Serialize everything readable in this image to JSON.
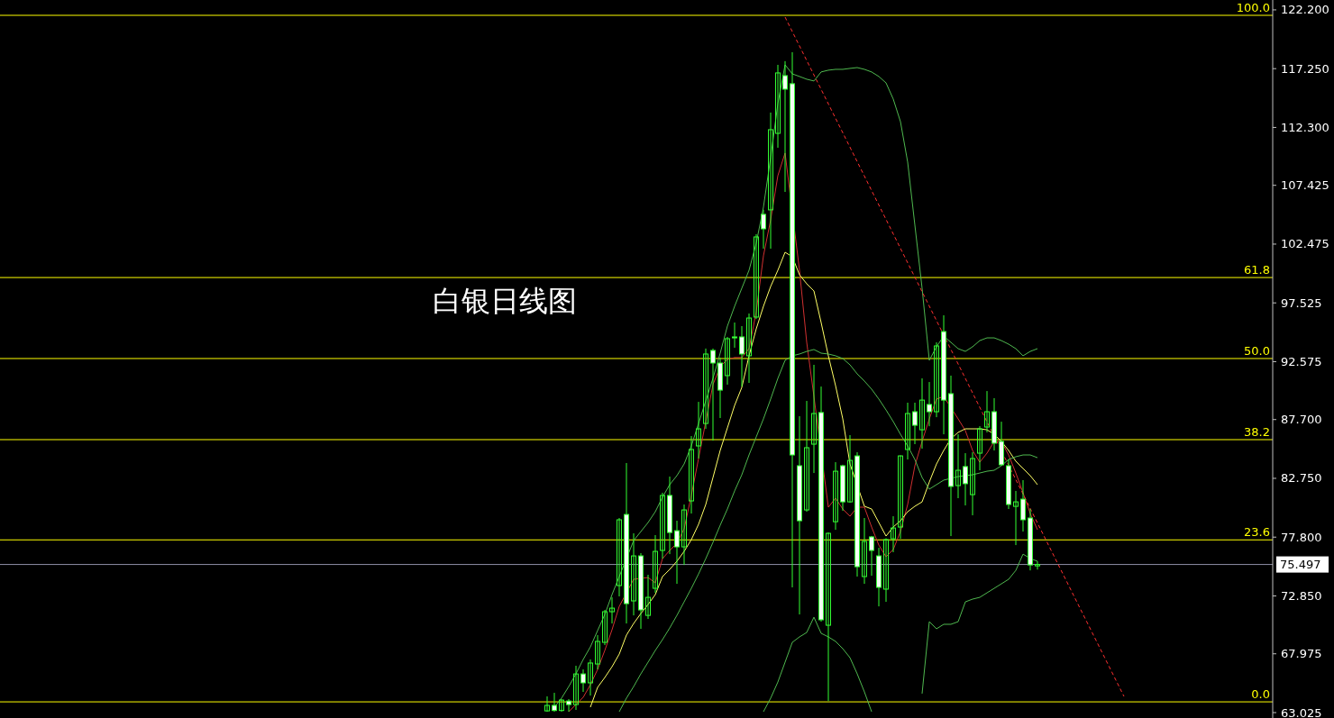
{
  "chart_data": {
    "type": "candlestick",
    "title": "白银日线图",
    "categories": [
      null,
      null,
      null,
      null,
      null,
      null,
      null,
      null,
      null,
      null,
      null,
      null,
      null,
      null,
      null,
      null,
      null,
      null,
      null,
      null,
      null,
      null,
      null,
      null,
      null,
      null,
      null,
      null,
      null,
      null,
      null,
      null,
      null,
      null,
      null,
      null,
      null,
      null,
      null,
      null,
      null,
      null,
      null,
      null,
      null,
      null,
      null,
      null,
      null,
      null,
      null,
      null,
      null,
      null,
      null,
      null,
      null,
      null,
      null,
      null,
      null,
      null,
      null,
      null,
      null,
      null,
      null,
      null,
      null,
      null,
      null,
      null,
      null,
      null,
      null,
      null,
      null,
      null,
      null,
      null,
      null,
      null,
      null,
      null,
      null,
      null,
      null,
      null,
      null,
      null,
      null,
      null,
      null,
      null,
      null,
      null,
      null,
      null,
      null,
      null,
      null
    ],
    "color": "#33ff33",
    "ohlc": [
      [
        63.17,
        64.39,
        63.1,
        63.63
      ],
      [
        63.63,
        64.69,
        63.1,
        63.2
      ],
      [
        63.2,
        64.16,
        63.1,
        64.08
      ],
      [
        64.0,
        64.16,
        63.1,
        63.7
      ],
      [
        63.7,
        66.97,
        63.25,
        66.28
      ],
      [
        66.28,
        66.66,
        64.77,
        65.53
      ],
      [
        65.53,
        67.5,
        64.46,
        67.2
      ],
      [
        67.12,
        69.55,
        66.66,
        69.02
      ],
      [
        68.94,
        71.67,
        68.71,
        71.52
      ],
      [
        71.52,
        72.73,
        70.53,
        71.82
      ],
      [
        73.72,
        79.41,
        72.81,
        79.26
      ],
      [
        79.71,
        84.04,
        70.53,
        72.2
      ],
      [
        72.43,
        78.12,
        71.21,
        76.22
      ],
      [
        76.22,
        76.45,
        70.08,
        71.67
      ],
      [
        71.21,
        74.63,
        70.91,
        72.73
      ],
      [
        73.49,
        77.97,
        73.11,
        76.6
      ],
      [
        76.68,
        81.54,
        75.99,
        81.31
      ],
      [
        81.31,
        82.9,
        76.37,
        78.19
      ],
      [
        78.34,
        79.18,
        73.87,
        76.98
      ],
      [
        76.98,
        80.55,
        75.46,
        80.09
      ],
      [
        80.85,
        86.31,
        79.79,
        85.18
      ],
      [
        85.48,
        89.19,
        84.42,
        86.92
      ],
      [
        87.37,
        93.68,
        86.92,
        93.22
      ],
      [
        93.52,
        93.68,
        85.93,
        92.46
      ],
      [
        92.46,
        92.92,
        87.83,
        90.18
      ],
      [
        91.4,
        94.66,
        90.64,
        94.51
      ],
      [
        94.66,
        95.87,
        93.75,
        94.58
      ],
      [
        94.66,
        95.57,
        90.48,
        93.22
      ],
      [
        93.07,
        96.63,
        90.79,
        96.25
      ],
      [
        96.33,
        103.31,
        96.17,
        103.08
      ],
      [
        104.98,
        105.36,
        102.09,
        103.76
      ],
      [
        105.36,
        113.55,
        102.09,
        112.11
      ],
      [
        111.8,
        117.57,
        110.59,
        116.89
      ],
      [
        116.66,
        117.88,
        106.87,
        115.52
      ],
      [
        115.98,
        118.63,
        73.57,
        84.72
      ],
      [
        83.81,
        87.98,
        71.29,
        79.18
      ],
      [
        80.09,
        89.27,
        79.94,
        85.33
      ],
      [
        85.63,
        92.31,
        83.2,
        88.21
      ],
      [
        88.29,
        90.48,
        70.68,
        70.84
      ],
      [
        70.38,
        78.2,
        64.0,
        78.12
      ],
      [
        79.1,
        84.11,
        78.42,
        83.35
      ],
      [
        83.81,
        83.9,
        80.02,
        80.77
      ],
      [
        80.77,
        86.39,
        80.7,
        84.26
      ],
      [
        84.64,
        84.95,
        74.48,
        75.31
      ],
      [
        74.48,
        79.41,
        73.87,
        77.44
      ],
      [
        77.82,
        77.9,
        74.55,
        76.68
      ],
      [
        76.22,
        76.9,
        71.97,
        73.57
      ],
      [
        73.42,
        77.7,
        72.35,
        77.59
      ],
      [
        77.66,
        79.56,
        76.53,
        78.57
      ],
      [
        78.65,
        84.7,
        77.66,
        84.64
      ],
      [
        85.18,
        89.12,
        84.34,
        88.21
      ],
      [
        88.36,
        89.12,
        85.63,
        87.22
      ],
      [
        86.84,
        91.17,
        85.25,
        89.34
      ],
      [
        88.97,
        90.86,
        87.14,
        88.36
      ],
      [
        88.36,
        94.2,
        87.9,
        93.9
      ],
      [
        95.11,
        96.48,
        86.46,
        89.34
      ],
      [
        89.88,
        91.4,
        77.89,
        82.07
      ],
      [
        82.14,
        86.46,
        81.08,
        83.43
      ],
      [
        83.74,
        84.87,
        80.47,
        82.3
      ],
      [
        81.38,
        84.95,
        79.64,
        84.42
      ],
      [
        84.87,
        87.14,
        83.43,
        86.92
      ],
      [
        87.07,
        90.1,
        86.62,
        88.36
      ],
      [
        88.36,
        89.5,
        85.1,
        85.71
      ],
      [
        85.86,
        87.52,
        83.81,
        83.89
      ],
      [
        83.81,
        84.34,
        80.17,
        80.55
      ],
      [
        80.39,
        81.69,
        77.13,
        80.77
      ],
      [
        81.0,
        82.6,
        78.27,
        79.26
      ],
      [
        79.41,
        80.17,
        75.0,
        75.46
      ],
      [
        75.38,
        75.76,
        75.07,
        75.5
      ],
      null,
      null,
      null,
      null,
      null,
      null,
      null,
      null,
      null,
      null,
      null,
      null,
      null,
      null,
      null,
      null,
      null,
      null,
      null,
      null,
      null,
      null,
      null,
      null,
      null,
      null,
      null,
      null,
      null,
      null,
      null,
      null
    ],
    "series": [
      {
        "type": "line",
        "color": "#d03030",
        "values": [
          null,
          null,
          null,
          63.1,
          63.7,
          64.31,
          65.37,
          66.66,
          68.26,
          70.0,
          71.97,
          null,
          74.25,
          74.33,
          74.4,
          73.95,
          75.99,
          76.68,
          77.29,
          78.5,
          81.31,
          84.42,
          87.53,
          90.64,
          92.16,
          92.76,
          92.92,
          92.92,
          93.67,
          96.78,
          101.49,
          104.52,
          108.24,
          110.14,
          null,
          100.27,
          94.2,
          89.65,
          null,
          80.32,
          81.08,
          80.17,
          79.56,
          80.32,
          80.32,
          78.65,
          77.13,
          76.15,
          76.75,
          78.27,
          80.55,
          83.81,
          85.86,
          87.76,
          89.43,
          89.65,
          null,
          87.76,
          86.77,
          85.1,
          84.11,
          84.87,
          85.86,
          85.86,
          84.72,
          83.2,
          81.54,
          79.79,
          78.42,
          null,
          null,
          null,
          null,
          null,
          null,
          null,
          null,
          null,
          null,
          null,
          null,
          null,
          null,
          null,
          null,
          null,
          null,
          null,
          null,
          null,
          null,
          null,
          null,
          null,
          null,
          null,
          null,
          null,
          null,
          null,
          null
        ]
      },
      {
        "type": "line",
        "color": "#ffff66",
        "values": [
          null,
          null,
          null,
          null,
          null,
          null,
          63.48,
          65.15,
          65.98,
          66.89,
          67.95,
          69.55,
          70.53,
          71.37,
          72.13,
          72.96,
          74.48,
          75.08,
          75.77,
          76.6,
          77.59,
          78.88,
          80.55,
          82.82,
          85.1,
          87.0,
          88.89,
          90.41,
          93.07,
          95.34,
          97.24,
          98.91,
          100.27,
          101.79,
          101.41,
          99.89,
          99.14,
          98.53,
          95.87,
          93.07,
          90.56,
          87.76,
          83.96,
          null,
          80.4,
          80.17,
          79.03,
          77.89,
          78.65,
          79.18,
          79.94,
          80.4,
          80.77,
          82.44,
          83.96,
          85.1,
          86.09,
          86.62,
          86.92,
          86.92,
          86.92,
          86.84,
          86.46,
          85.86,
          85.1,
          84.19,
          83.58,
          82.98,
          82.22,
          null,
          null,
          null,
          null,
          null,
          null,
          null,
          null,
          null,
          null,
          null,
          null,
          null,
          null,
          null,
          null,
          null,
          null,
          null,
          null,
          null,
          null,
          null,
          null,
          null,
          null,
          null,
          null,
          null,
          null,
          null,
          null
        ]
      },
      {
        "type": "line",
        "color": "#4fb84f",
        "values": [
          null,
          63.48,
          64.24,
          65.22,
          66.29,
          67.5,
          68.56,
          69.93,
          71.29,
          72.96,
          74.48,
          null,
          77.51,
          78.27,
          79.03,
          79.94,
          81.16,
          82.22,
          82.98,
          83.96,
          85.48,
          87.37,
          89.27,
          91.17,
          93.29,
          95.57,
          97.24,
          98.76,
          100.27,
          102.55,
          105.59,
          109.76,
          114.31,
          117.57,
          116.81,
          116.59,
          116.36,
          116.21,
          116.97,
          117.12,
          117.19,
          117.19,
          117.27,
          117.34,
          117.19,
          116.97,
          116.59,
          116.05,
          114.69,
          112.79,
          109.38,
          104.07,
          98.76,
          92.69,
          93.83,
          94.73,
          94.2,
          93.67,
          93.44,
          93.83,
          94.35,
          94.58,
          94.58,
          94.35,
          94.05,
          93.67,
          93.07,
          93.44,
          93.67,
          null,
          null,
          null,
          null,
          null,
          null,
          null,
          null,
          null,
          null,
          null,
          null,
          null,
          null,
          null,
          null,
          null,
          null,
          null,
          null,
          null,
          null,
          null,
          null,
          null,
          null,
          null,
          null,
          null,
          null,
          null,
          null
        ]
      },
      {
        "type": "line",
        "color": "#4fb84f",
        "values": [
          null,
          null,
          null,
          null,
          null,
          null,
          null,
          null,
          null,
          null,
          63.1,
          64.24,
          65.22,
          66.29,
          67.27,
          68.26,
          69.17,
          70.15,
          71.21,
          72.35,
          73.49,
          74.7,
          75.99,
          77.36,
          78.8,
          80.17,
          81.69,
          83.05,
          84.72,
          86.24,
          87.76,
          89.43,
          91.17,
          92.69,
          93.07,
          93.22,
          93.44,
          93.6,
          93.29,
          93.22,
          93.07,
          92.84,
          92.31,
          91.55,
          90.94,
          90.26,
          89.43,
          88.51,
          87.53,
          86.46,
          85.48,
          84.34,
          82.82,
          81.84,
          82.22,
          82.6,
          82.75,
          82.9,
          82.98,
          83.05,
          83.2,
          83.35,
          83.43,
          83.81,
          84.34,
          84.57,
          84.72,
          84.72,
          84.49,
          null,
          null,
          null,
          null,
          null,
          null,
          null,
          null,
          null,
          null,
          null,
          null,
          null,
          null,
          null,
          null,
          null,
          null,
          null,
          null,
          null,
          null,
          null,
          null,
          null,
          null,
          null,
          null,
          null,
          null,
          null,
          null
        ]
      },
      {
        "type": "line",
        "color": "#4fb84f",
        "values": [
          null,
          null,
          null,
          null,
          null,
          null,
          null,
          null,
          null,
          null,
          null,
          null,
          null,
          null,
          null,
          null,
          null,
          null,
          null,
          null,
          null,
          null,
          null,
          null,
          null,
          null,
          null,
          null,
          null,
          null,
          63.1,
          64.24,
          65.6,
          67.27,
          68.94,
          69.4,
          69.77,
          71.06,
          69.7,
          69.4,
          69.02,
          68.41,
          67.65,
          66.29,
          64.77,
          63.1,
          null,
          null,
          null,
          null,
          null,
          null,
          null,
          null,
          null,
          null,
          null,
          null,
          null,
          null,
          null,
          null,
          null,
          null,
          null,
          null,
          null,
          null,
          null,
          null,
          null,
          null,
          null,
          null,
          null,
          null,
          null,
          null,
          null,
          null,
          null,
          null,
          null,
          null,
          null,
          null,
          null,
          null,
          null,
          null,
          null,
          null,
          null,
          null,
          null,
          null,
          null,
          null,
          null,
          null,
          null
        ]
      },
      {
        "type": "line",
        "color": "#4fb84f",
        "values": [
          null,
          null,
          null,
          null,
          null,
          null,
          null,
          null,
          null,
          null,
          null,
          null,
          null,
          null,
          null,
          null,
          null,
          null,
          null,
          null,
          null,
          null,
          null,
          null,
          null,
          null,
          null,
          null,
          null,
          null,
          null,
          null,
          null,
          null,
          null,
          null,
          null,
          null,
          null,
          null,
          null,
          null,
          null,
          null,
          null,
          null,
          null,
          null,
          null,
          null,
          null,
          null,
          64.62,
          70.68,
          70.08,
          70.46,
          70.46,
          70.68,
          72.35,
          72.58,
          72.73,
          73.11,
          73.49,
          73.87,
          74.25,
          75.0,
          76.37,
          76.0,
          75.77,
          null,
          null,
          null,
          null,
          null,
          null,
          null,
          null,
          null,
          null,
          null,
          null,
          null,
          null,
          null,
          null,
          null,
          null,
          null,
          null,
          null,
          null,
          null,
          null,
          null,
          null,
          null,
          null,
          null,
          null,
          null,
          null
        ]
      },
      {
        "type": "line",
        "color": "#ff3030",
        "line_style": "dashed",
        "values": [
          null,
          null,
          null,
          null,
          null,
          null,
          null,
          null,
          null,
          null,
          null,
          null,
          null,
          null,
          null,
          null,
          null,
          null,
          null,
          null,
          null,
          null,
          null,
          null,
          null,
          null,
          null,
          null,
          null,
          null,
          null,
          null,
          null,
          121.59,
          null,
          null,
          null,
          null,
          null,
          null,
          null,
          null,
          null,
          null,
          null,
          null,
          null,
          null,
          null,
          null,
          null,
          null,
          null,
          null,
          null,
          null,
          null,
          null,
          null,
          null,
          null,
          null,
          null,
          null,
          null,
          null,
          null,
          null,
          null,
          null,
          null,
          null,
          null,
          null,
          null,
          null,
          null,
          null,
          null,
          null,
          64.39,
          null,
          null,
          null,
          null,
          null,
          null,
          null,
          null,
          null,
          null,
          null,
          null,
          null,
          null,
          null,
          null,
          null,
          null,
          null,
          null
        ]
      }
    ],
    "ylim": [
      62.57,
      123.03
    ],
    "yticks": [
      {
        "value": 122.2,
        "label": "122.200"
      },
      {
        "value": 117.25,
        "label": "117.250"
      },
      {
        "value": 112.3,
        "label": "112.300"
      },
      {
        "value": 107.425,
        "label": "107.425"
      },
      {
        "value": 102.475,
        "label": "102.475"
      },
      {
        "value": 97.525,
        "label": "97.525"
      },
      {
        "value": 92.575,
        "label": "92.575"
      },
      {
        "value": 87.7,
        "label": "87.700"
      },
      {
        "value": 82.75,
        "label": "82.750"
      },
      {
        "value": 77.8,
        "label": "77.800"
      },
      {
        "value": 72.85,
        "label": "72.850"
      },
      {
        "value": 67.975,
        "label": "67.975"
      },
      {
        "value": 63.025,
        "label": "63.025"
      }
    ],
    "ref_lines": [
      {
        "axis": "y",
        "value": 121.74,
        "color": "#ffff00"
      },
      {
        "axis": "y",
        "value": 99.66,
        "color": "#ffff00"
      },
      {
        "axis": "y",
        "value": 92.84,
        "color": "#ffff00"
      },
      {
        "axis": "y",
        "value": 86.01,
        "color": "#ffff00"
      },
      {
        "axis": "y",
        "value": 77.57,
        "color": "#ffff00"
      },
      {
        "axis": "y",
        "value": 63.93,
        "color": "#ffff00"
      },
      {
        "axis": "y",
        "value": 75.497,
        "label": "75.497",
        "color": "#9090a8"
      }
    ],
    "annotations": [
      {
        "text": "100.0",
        "y": 121.74
      },
      {
        "text": "61.8",
        "y": 99.66
      },
      {
        "text": "50.0",
        "y": 92.84
      },
      {
        "text": "38.2",
        "y": 86.01
      },
      {
        "text": "23.6",
        "y": 77.57
      },
      {
        "text": "0.0",
        "y": 63.93
      }
    ],
    "tick_labels": "y"
  }
}
